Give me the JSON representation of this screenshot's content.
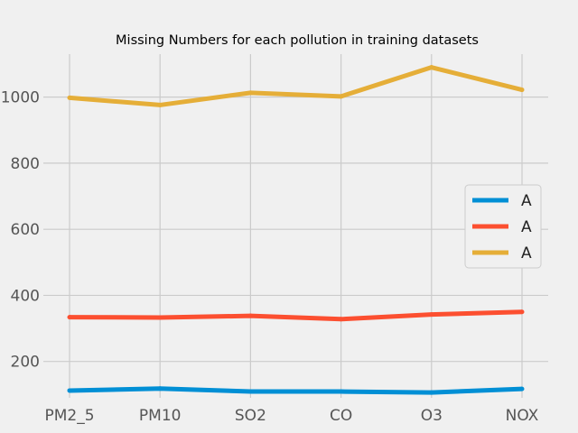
{
  "chart_data": {
    "type": "line",
    "title": "Missing Numbers for each pollution in training datasets",
    "xlabel": "",
    "ylabel": "",
    "categories": [
      "PM2_5",
      "PM10",
      "SO2",
      "CO",
      "O3",
      "NOX"
    ],
    "ylim": [
      90,
      1130
    ],
    "yticks": [
      200,
      400,
      600,
      800,
      1000
    ],
    "grid": true,
    "legend_position": "center-right",
    "series": [
      {
        "name": "A",
        "color": "#008fd5",
        "values": [
          112,
          118,
          109,
          109,
          106,
          117
        ]
      },
      {
        "name": "A",
        "color": "#fc4f30",
        "values": [
          334,
          333,
          338,
          328,
          342,
          350
        ]
      },
      {
        "name": "A",
        "color": "#e5ae38",
        "values": [
          998,
          976,
          1013,
          1002,
          1090,
          1022
        ]
      }
    ]
  }
}
